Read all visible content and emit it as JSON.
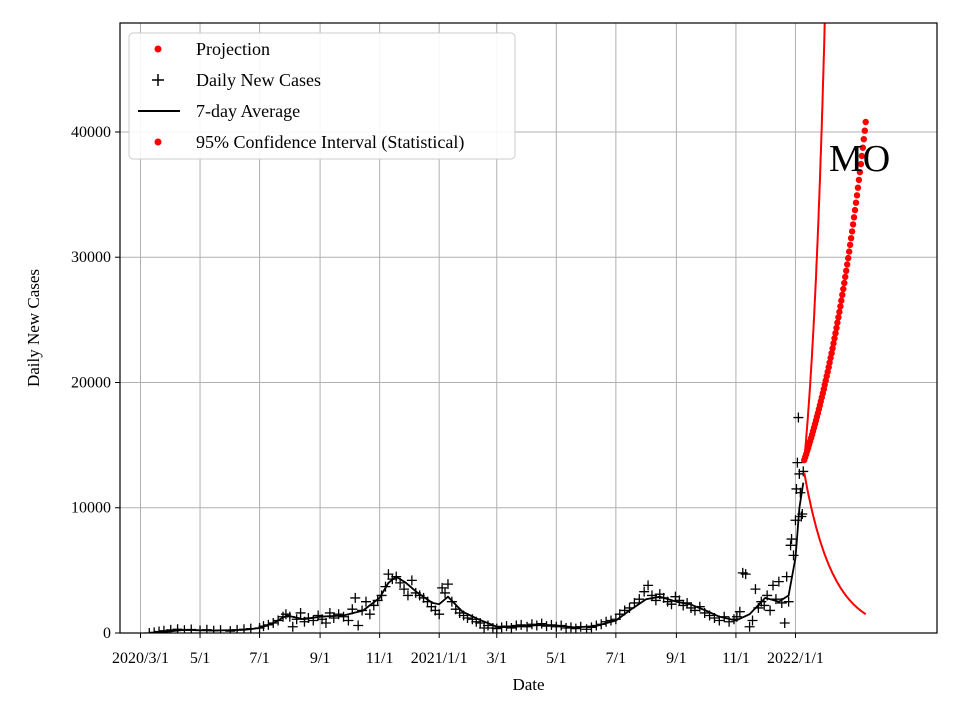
{
  "chart_data": {
    "type": "scatter",
    "xlabel": "Date",
    "ylabel": "Daily New Cases",
    "annotation": "MO",
    "grid": true,
    "legend_position": "top-left",
    "x_range": [
      "2020-02-09",
      "2022-05-26"
    ],
    "ylim": [
      0,
      48700
    ],
    "x_ticks": [
      {
        "date": "2020-03-01",
        "label": "2020/3/1"
      },
      {
        "date": "2020-05-01",
        "label": "5/1"
      },
      {
        "date": "2020-07-01",
        "label": "7/1"
      },
      {
        "date": "2020-09-01",
        "label": "9/1"
      },
      {
        "date": "2020-11-01",
        "label": "11/1"
      },
      {
        "date": "2021-01-01",
        "label": "2021/1/1"
      },
      {
        "date": "2021-03-01",
        "label": "3/1"
      },
      {
        "date": "2021-05-01",
        "label": "5/1"
      },
      {
        "date": "2021-07-01",
        "label": "7/1"
      },
      {
        "date": "2021-09-01",
        "label": "9/1"
      },
      {
        "date": "2021-11-01",
        "label": "11/1"
      },
      {
        "date": "2022-01-01",
        "label": "2022/1/1"
      }
    ],
    "y_ticks": [
      {
        "value": 0,
        "label": "0"
      },
      {
        "value": 10000,
        "label": "10000"
      },
      {
        "value": 20000,
        "label": "20000"
      },
      {
        "value": 30000,
        "label": "30000"
      },
      {
        "value": 40000,
        "label": "40000"
      }
    ],
    "legend": [
      {
        "label": "Projection",
        "marker": "dot",
        "color": "#ff0000"
      },
      {
        "label": "Daily New Cases",
        "marker": "plus",
        "color": "#000000"
      },
      {
        "label": "7-day Average",
        "marker": "line",
        "color": "#000000"
      },
      {
        "label": "95% Confidence Interval (Statistical)",
        "marker": "dot",
        "color": "#ff0000"
      }
    ],
    "series": [
      {
        "name": "7-day Average",
        "style": "line",
        "color": "#000000",
        "points": [
          [
            "2020-03-10",
            0
          ],
          [
            "2020-03-25",
            80
          ],
          [
            "2020-04-15",
            250
          ],
          [
            "2020-05-15",
            200
          ],
          [
            "2020-06-15",
            250
          ],
          [
            "2020-07-01",
            400
          ],
          [
            "2020-07-15",
            800
          ],
          [
            "2020-07-29",
            1400
          ],
          [
            "2020-08-15",
            1100
          ],
          [
            "2020-09-01",
            1300
          ],
          [
            "2020-09-25",
            1400
          ],
          [
            "2020-10-15",
            1800
          ],
          [
            "2020-11-01",
            2800
          ],
          [
            "2020-11-10",
            4000
          ],
          [
            "2020-11-18",
            4500
          ],
          [
            "2020-11-28",
            4000
          ],
          [
            "2020-12-10",
            3200
          ],
          [
            "2020-12-25",
            2400
          ],
          [
            "2021-01-01",
            2300
          ],
          [
            "2021-01-10",
            2900
          ],
          [
            "2021-01-25",
            1700
          ],
          [
            "2021-02-10",
            1100
          ],
          [
            "2021-03-01",
            500
          ],
          [
            "2021-03-20",
            500
          ],
          [
            "2021-04-15",
            650
          ],
          [
            "2021-05-01",
            600
          ],
          [
            "2021-05-20",
            450
          ],
          [
            "2021-06-10",
            550
          ],
          [
            "2021-07-01",
            1000
          ],
          [
            "2021-07-15",
            1800
          ],
          [
            "2021-08-01",
            2700
          ],
          [
            "2021-08-15",
            2900
          ],
          [
            "2021-09-01",
            2500
          ],
          [
            "2021-09-15",
            2300
          ],
          [
            "2021-10-01",
            1800
          ],
          [
            "2021-10-15",
            1300
          ],
          [
            "2021-11-01",
            1000
          ],
          [
            "2021-11-15",
            1500
          ],
          [
            "2021-12-01",
            2800
          ],
          [
            "2021-12-15",
            2500
          ],
          [
            "2021-12-25",
            3000
          ],
          [
            "2022-01-01",
            6000
          ],
          [
            "2022-01-05",
            10000
          ],
          [
            "2022-01-09",
            12000
          ]
        ]
      },
      {
        "name": "Daily New Cases",
        "style": "plus",
        "color": "#000000",
        "points": [
          [
            "2020-03-10",
            0
          ],
          [
            "2020-03-15",
            50
          ],
          [
            "2020-03-20",
            120
          ],
          [
            "2020-03-25",
            180
          ],
          [
            "2020-04-01",
            250
          ],
          [
            "2020-04-08",
            300
          ],
          [
            "2020-04-15",
            220
          ],
          [
            "2020-04-22",
            280
          ],
          [
            "2020-05-01",
            200
          ],
          [
            "2020-05-08",
            260
          ],
          [
            "2020-05-15",
            180
          ],
          [
            "2020-05-22",
            230
          ],
          [
            "2020-06-01",
            150
          ],
          [
            "2020-06-08",
            250
          ],
          [
            "2020-06-15",
            300
          ],
          [
            "2020-06-22",
            350
          ],
          [
            "2020-07-01",
            400
          ],
          [
            "2020-07-05",
            550
          ],
          [
            "2020-07-10",
            650
          ],
          [
            "2020-07-15",
            800
          ],
          [
            "2020-07-20",
            1000
          ],
          [
            "2020-07-25",
            1300
          ],
          [
            "2020-07-28",
            1500
          ],
          [
            "2020-08-01",
            1300
          ],
          [
            "2020-08-04",
            500
          ],
          [
            "2020-08-08",
            1100
          ],
          [
            "2020-08-12",
            1600
          ],
          [
            "2020-08-16",
            900
          ],
          [
            "2020-08-20",
            1200
          ],
          [
            "2020-08-25",
            1000
          ],
          [
            "2020-08-30",
            1400
          ],
          [
            "2020-09-03",
            1100
          ],
          [
            "2020-09-07",
            800
          ],
          [
            "2020-09-11",
            1600
          ],
          [
            "2020-09-15",
            1200
          ],
          [
            "2020-09-20",
            1500
          ],
          [
            "2020-09-25",
            1300
          ],
          [
            "2020-09-30",
            1000
          ],
          [
            "2020-10-04",
            1900
          ],
          [
            "2020-10-07",
            2800
          ],
          [
            "2020-10-10",
            600
          ],
          [
            "2020-10-14",
            1800
          ],
          [
            "2020-10-18",
            2500
          ],
          [
            "2020-10-22",
            1500
          ],
          [
            "2020-10-26",
            2200
          ],
          [
            "2020-10-30",
            2600
          ],
          [
            "2020-11-03",
            3000
          ],
          [
            "2020-11-07",
            3700
          ],
          [
            "2020-11-10",
            4700
          ],
          [
            "2020-11-14",
            4300
          ],
          [
            "2020-11-18",
            4500
          ],
          [
            "2020-11-22",
            4000
          ],
          [
            "2020-11-26",
            3500
          ],
          [
            "2020-11-30",
            3000
          ],
          [
            "2020-12-04",
            4200
          ],
          [
            "2020-12-08",
            3200
          ],
          [
            "2020-12-12",
            3000
          ],
          [
            "2020-12-16",
            2800
          ],
          [
            "2020-12-20",
            2500
          ],
          [
            "2020-12-24",
            2100
          ],
          [
            "2020-12-28",
            1800
          ],
          [
            "2021-01-01",
            1500
          ],
          [
            "2021-01-04",
            3600
          ],
          [
            "2021-01-07",
            3200
          ],
          [
            "2021-01-10",
            3900
          ],
          [
            "2021-01-14",
            2500
          ],
          [
            "2021-01-18",
            1900
          ],
          [
            "2021-01-22",
            1600
          ],
          [
            "2021-01-26",
            1400
          ],
          [
            "2021-01-30",
            1200
          ],
          [
            "2021-02-04",
            1100
          ],
          [
            "2021-02-08",
            900
          ],
          [
            "2021-02-12",
            800
          ],
          [
            "2021-02-16",
            400
          ],
          [
            "2021-02-20",
            600
          ],
          [
            "2021-02-25",
            400
          ],
          [
            "2021-03-01",
            350
          ],
          [
            "2021-03-06",
            450
          ],
          [
            "2021-03-11",
            550
          ],
          [
            "2021-03-16",
            400
          ],
          [
            "2021-03-21",
            600
          ],
          [
            "2021-03-26",
            650
          ],
          [
            "2021-04-01",
            500
          ],
          [
            "2021-04-06",
            700
          ],
          [
            "2021-04-11",
            600
          ],
          [
            "2021-04-16",
            750
          ],
          [
            "2021-04-21",
            550
          ],
          [
            "2021-04-26",
            650
          ],
          [
            "2021-05-01",
            500
          ],
          [
            "2021-05-06",
            600
          ],
          [
            "2021-05-11",
            400
          ],
          [
            "2021-05-16",
            450
          ],
          [
            "2021-05-21",
            350
          ],
          [
            "2021-05-26",
            500
          ],
          [
            "2021-06-01",
            300
          ],
          [
            "2021-06-06",
            450
          ],
          [
            "2021-06-11",
            600
          ],
          [
            "2021-06-16",
            700
          ],
          [
            "2021-06-21",
            900
          ],
          [
            "2021-06-26",
            1000
          ],
          [
            "2021-07-01",
            1100
          ],
          [
            "2021-07-05",
            1500
          ],
          [
            "2021-07-10",
            1800
          ],
          [
            "2021-07-15",
            2000
          ],
          [
            "2021-07-20",
            2400
          ],
          [
            "2021-07-25",
            2700
          ],
          [
            "2021-07-30",
            3300
          ],
          [
            "2021-08-03",
            3800
          ],
          [
            "2021-08-07",
            3000
          ],
          [
            "2021-08-11",
            2600
          ],
          [
            "2021-08-15",
            3100
          ],
          [
            "2021-08-19",
            2800
          ],
          [
            "2021-08-23",
            2500
          ],
          [
            "2021-08-27",
            2300
          ],
          [
            "2021-08-31",
            2900
          ],
          [
            "2021-09-04",
            2600
          ],
          [
            "2021-09-08",
            2200
          ],
          [
            "2021-09-12",
            2400
          ],
          [
            "2021-09-16",
            2000
          ],
          [
            "2021-09-20",
            1800
          ],
          [
            "2021-09-25",
            2100
          ],
          [
            "2021-09-30",
            1600
          ],
          [
            "2021-10-05",
            1400
          ],
          [
            "2021-10-10",
            1200
          ],
          [
            "2021-10-15",
            1000
          ],
          [
            "2021-10-20",
            1300
          ],
          [
            "2021-10-25",
            900
          ],
          [
            "2021-10-30",
            1100
          ],
          [
            "2021-11-02",
            1300
          ],
          [
            "2021-11-05",
            1700
          ],
          [
            "2021-11-08",
            4800
          ],
          [
            "2021-11-11",
            4700
          ],
          [
            "2021-11-15",
            500
          ],
          [
            "2021-11-18",
            1000
          ],
          [
            "2021-11-21",
            3500
          ],
          [
            "2021-11-24",
            2000
          ],
          [
            "2021-11-27",
            2500
          ],
          [
            "2021-11-30",
            2200
          ],
          [
            "2021-12-03",
            3000
          ],
          [
            "2021-12-06",
            1800
          ],
          [
            "2021-12-09",
            3800
          ],
          [
            "2021-12-12",
            2700
          ],
          [
            "2021-12-15",
            4100
          ],
          [
            "2021-12-18",
            2400
          ],
          [
            "2021-12-21",
            800
          ],
          [
            "2021-12-23",
            4500
          ],
          [
            "2021-12-25",
            2500
          ],
          [
            "2021-12-27",
            7000
          ],
          [
            "2021-12-28",
            7500
          ],
          [
            "2021-12-30",
            6200
          ],
          [
            "2022-01-01",
            9000
          ],
          [
            "2022-01-02",
            11500
          ],
          [
            "2022-01-03",
            13600
          ],
          [
            "2022-01-04",
            17200
          ],
          [
            "2022-01-05",
            12700
          ],
          [
            "2022-01-06",
            11200
          ],
          [
            "2022-01-07",
            9300
          ],
          [
            "2022-01-08",
            9500
          ],
          [
            "2022-01-09",
            12900
          ]
        ]
      },
      {
        "name": "Projection",
        "style": "dot",
        "color": "#ff0000",
        "start": "2022-01-10",
        "end": "2022-03-14",
        "start_value": 13800,
        "end_value": 40800
      },
      {
        "name": "95% Confidence Interval (Statistical)",
        "style": "line",
        "color": "#ff0000",
        "upper": {
          "start": "2022-01-10",
          "start_value": 13800,
          "end": "2022-01-31",
          "end_value": 48700
        },
        "lower": {
          "start": "2022-01-10",
          "start_value": 12800,
          "end": "2022-03-14",
          "end_value": 1500
        }
      }
    ]
  }
}
